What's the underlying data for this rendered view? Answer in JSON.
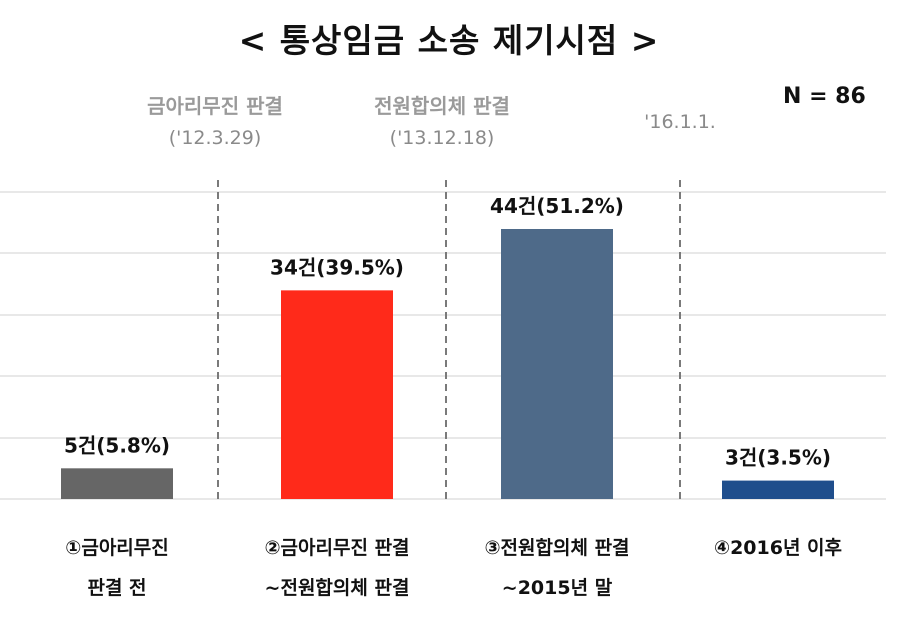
{
  "title": "< 통상임금 소송 제기시점 >",
  "sample": "N = 86",
  "events": [
    {
      "name": "금아리무진 판결",
      "date": "('12.3.29)"
    },
    {
      "name": "전원합의체 판결",
      "date": "('13.12.18)"
    },
    {
      "name": "",
      "date": "'16.1.1."
    }
  ],
  "chart_data": {
    "type": "bar",
    "categories": [
      [
        "①금아리무진",
        "판결 전"
      ],
      [
        "②금아리무진 판결",
        "~전원합의체 판결"
      ],
      [
        "③전원합의체 판결",
        "~2015년 말"
      ],
      [
        "④2016년 이후"
      ]
    ],
    "values": [
      5,
      34,
      44,
      3
    ],
    "data_labels": [
      "5건(5.8%)",
      "34건(39.5%)",
      "44건(51.2%)",
      "3건(3.5%)"
    ],
    "colors": [
      "#666666",
      "#ff2a1a",
      "#4e6a89",
      "#1f4e8c"
    ],
    "ylim": [
      0,
      52
    ],
    "grid": true,
    "legend": "none"
  }
}
